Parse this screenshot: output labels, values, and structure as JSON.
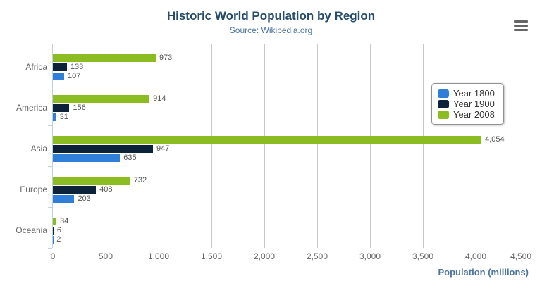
{
  "icons": {
    "context_menu": "hamburger-menu-icon"
  },
  "chart_data": {
    "type": "bar",
    "title": "Historic World Population by Region",
    "subtitle": "Source: Wikipedia.org",
    "xlabel": "Population (millions)",
    "ylabel": "",
    "categories": [
      "Africa",
      "America",
      "Asia",
      "Europe",
      "Oceania"
    ],
    "series": [
      {
        "name": "Year 1800",
        "color": "#2f7ed8",
        "values": [
          107,
          31,
          635,
          203,
          2
        ]
      },
      {
        "name": "Year 1900",
        "color": "#0d233a",
        "values": [
          133,
          156,
          947,
          408,
          6
        ]
      },
      {
        "name": "Year 2008",
        "color": "#8bbc21",
        "values": [
          973,
          914,
          4054,
          732,
          34
        ]
      }
    ],
    "xlim": [
      0,
      4500
    ],
    "tick_interval": 500,
    "tick_labels": [
      "0",
      "500",
      "1,000",
      "1,500",
      "2,000",
      "2,500",
      "3,000",
      "3,500",
      "4,000",
      "4,500"
    ],
    "grid": true,
    "data_labels": true,
    "legend_position": "right",
    "legend_items": [
      "Year 1800",
      "Year 1900",
      "Year 2008"
    ],
    "bar_order_top_to_bottom": [
      "Year 2008",
      "Year 1900",
      "Year 1800"
    ],
    "colors": {
      "title": "#274b6d",
      "subtitle": "#4d759e",
      "axis_title": "#4d759e",
      "labels": "#555555",
      "category_labels": "#666666",
      "grid": "#c8c8c8",
      "axis_line": "#c0d0e0",
      "legend_border": "#909090",
      "menu_icon": "#666666"
    }
  }
}
